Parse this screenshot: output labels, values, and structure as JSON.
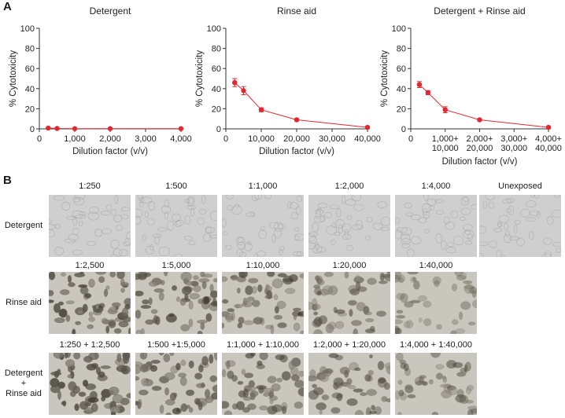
{
  "panel_a_label": "A",
  "panel_b_label": "B",
  "chart_data": [
    {
      "type": "line",
      "title": "Detergent",
      "xlabel": "Dilution factor (v/v)",
      "ylabel": "% Cytotoxicity",
      "xlim": [
        0,
        4000
      ],
      "ylim": [
        0,
        100
      ],
      "xticks": [
        "0",
        "1,000",
        "2,000",
        "3,000",
        "4,000"
      ],
      "yticks": [
        "0",
        "20",
        "40",
        "60",
        "80",
        "100"
      ],
      "series": [
        {
          "x": [
            250,
            500,
            1000,
            2000,
            4000
          ],
          "y": [
            0.8,
            0.4,
            0.2,
            0.2,
            0.2
          ],
          "err": [
            0,
            0,
            0,
            0,
            0
          ]
        }
      ],
      "color": "#e3272f"
    },
    {
      "type": "line",
      "title": "Rinse aid",
      "xlabel": "Dilution factor (v/v)",
      "ylabel": "% Cytotoxicity",
      "xlim": [
        0,
        40000
      ],
      "ylim": [
        0,
        100
      ],
      "xticks": [
        "0",
        "10,000",
        "20,000",
        "30,000",
        "40,000"
      ],
      "yticks": [
        "0",
        "20",
        "40",
        "60",
        "80",
        "100"
      ],
      "series": [
        {
          "x": [
            2500,
            5000,
            10000,
            20000,
            40000
          ],
          "y": [
            46,
            38,
            19,
            9,
            1.5
          ],
          "err": [
            4,
            4,
            2,
            1,
            1
          ]
        }
      ],
      "color": "#e3272f"
    },
    {
      "type": "line",
      "title": "Detergent + Rinse aid",
      "xlabel": "Dilution factor (v/v)",
      "ylabel": "% Cytotoxicity",
      "xlim": [
        0,
        4000
      ],
      "ylim": [
        0,
        100
      ],
      "xticks": [
        "0",
        "1,000+\n10,000",
        "2,000+\n20,000",
        "3,000+\n30,000",
        "4,000+\n40,000"
      ],
      "yticks": [
        "0",
        "20",
        "40",
        "60",
        "80",
        "100"
      ],
      "series": [
        {
          "x": [
            250,
            500,
            1000,
            2000,
            4000
          ],
          "y": [
            44,
            36,
            19,
            9,
            1.5
          ],
          "err": [
            3,
            2,
            3,
            1,
            1
          ]
        }
      ],
      "color": "#e3272f"
    }
  ],
  "micrographs": {
    "row_labels": [
      "Detergent",
      "Rinse aid",
      "Detergent\n+\nRinse aid"
    ],
    "rows": [
      [
        "1:250",
        "1:500",
        "1:1,000",
        "1:2,000",
        "1:4,000",
        "Unexposed"
      ],
      [
        "1:2,500",
        "1:5,000",
        "1:10,000",
        "1:20,000",
        "1:40,000"
      ],
      [
        "1:250 + 1:2,500",
        "1:500 +1:5,000",
        "1:1,000 + 1:10,000",
        "1:2,000 + 1:20,000",
        "1:4,000 + 1:40,000"
      ]
    ],
    "density": [
      [
        0.15,
        0.12,
        0.1,
        0.1,
        0.08,
        0.08
      ],
      [
        0.85,
        0.75,
        0.65,
        0.55,
        0.3
      ],
      [
        0.9,
        0.75,
        0.6,
        0.55,
        0.4
      ]
    ]
  }
}
